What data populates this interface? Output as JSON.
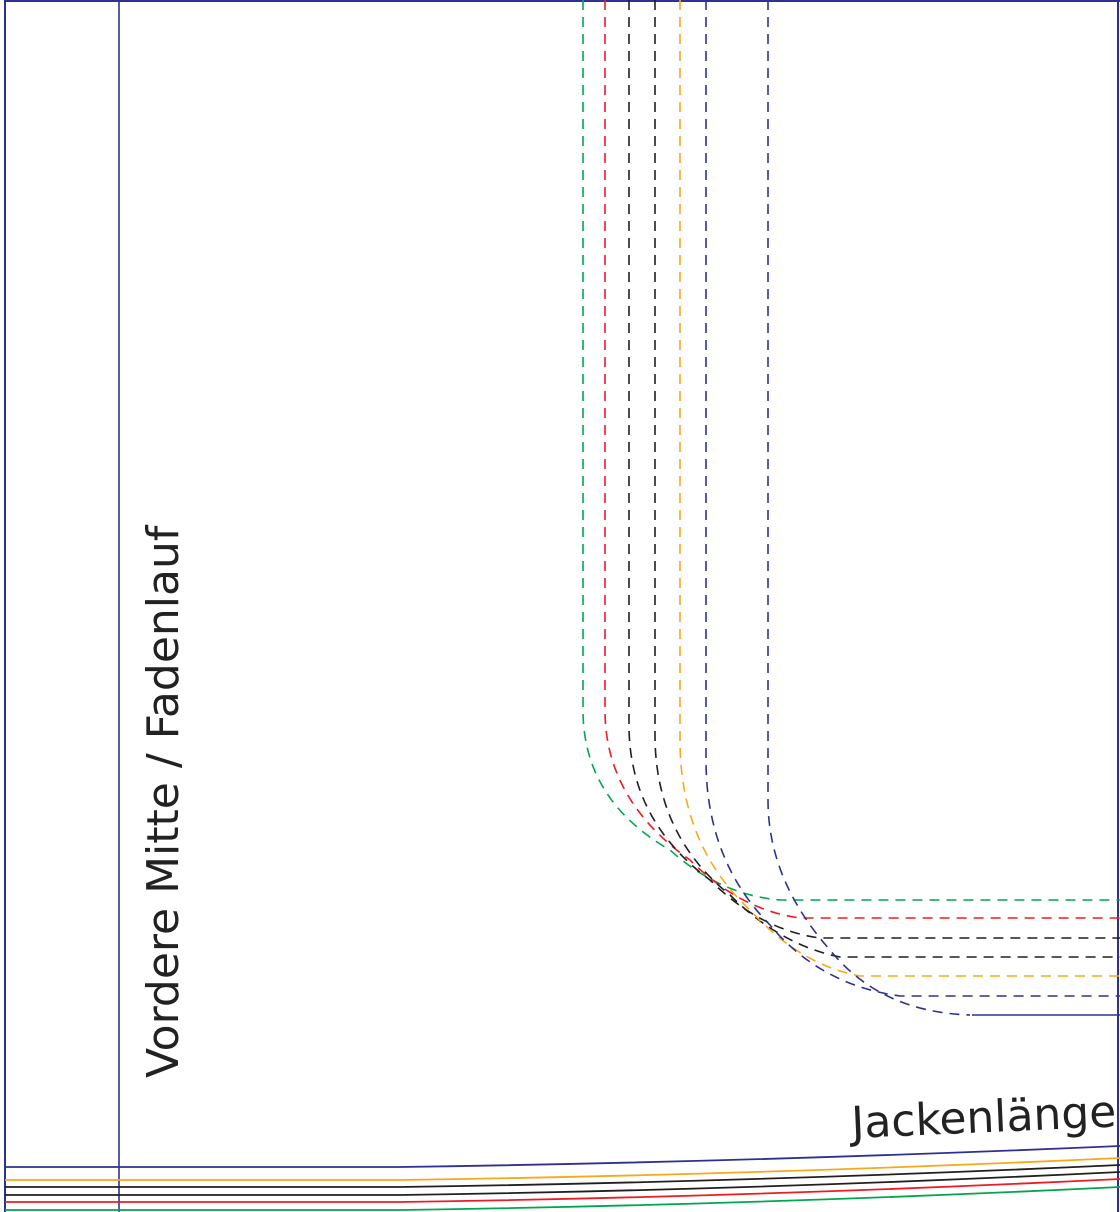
{
  "labels": {
    "center_front": "Vordere Mitte / Fadenlauf",
    "jacket_length": "Jackenlänge"
  },
  "size_colors": [
    "#2e3192",
    "#f7a81b",
    "#231f20",
    "#231f20",
    "#ed1c24",
    "#00a651"
  ],
  "pattern_frame_color": "#2e3192"
}
